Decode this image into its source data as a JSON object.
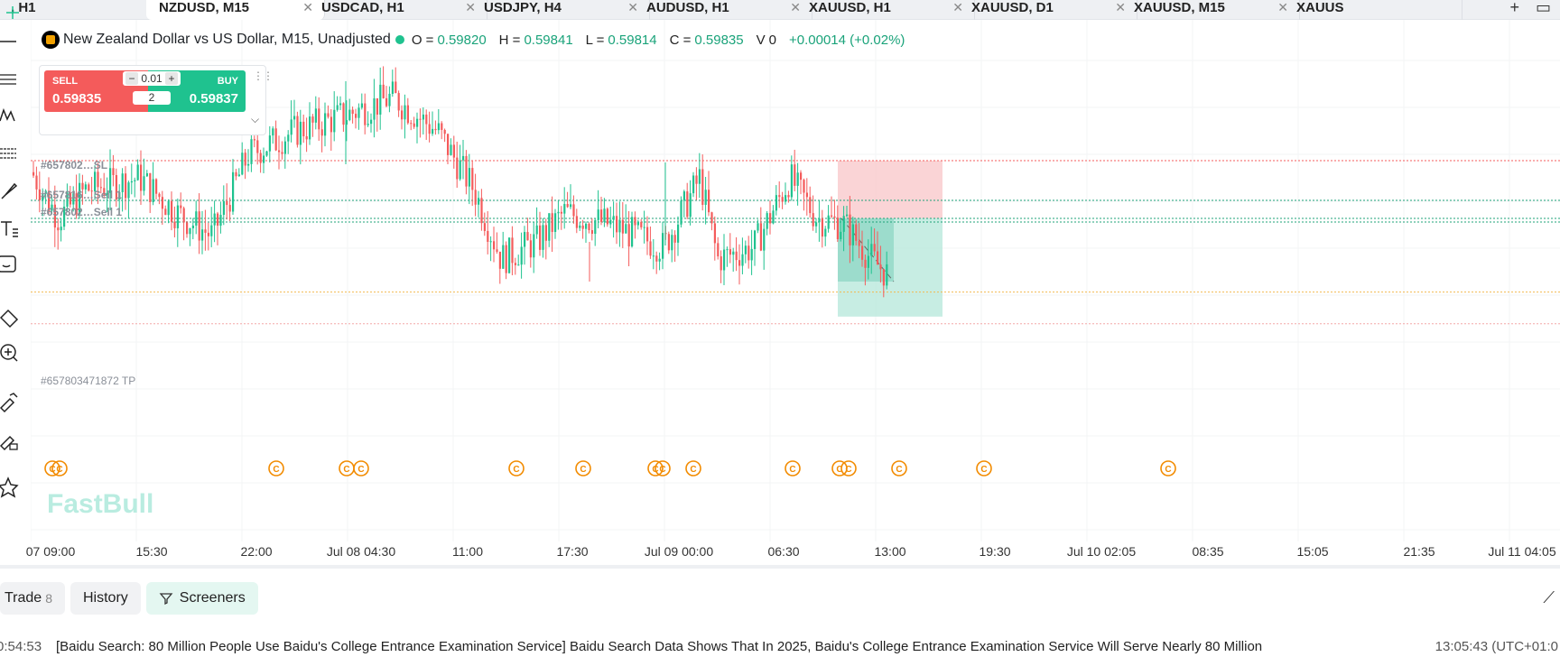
{
  "tabs": [
    {
      "label": ", H1",
      "active": false
    },
    {
      "label": "NZDUSD, M15",
      "active": true
    },
    {
      "label": "USDCAD, H1",
      "active": false
    },
    {
      "label": "USDJPY, H4",
      "active": false
    },
    {
      "label": "AUDUSD, H1",
      "active": false
    },
    {
      "label": "XAUUSD, H1",
      "active": false
    },
    {
      "label": "XAUUSD, D1",
      "active": false
    },
    {
      "label": "XAUUSD, M15",
      "active": false
    },
    {
      "label": "XAUUS",
      "active": false
    }
  ],
  "tab_close_glyph": "✕",
  "tab_actions": {
    "add": "+",
    "layout": "▭"
  },
  "tools": [
    "crosshair-icon",
    "horizontal-line-icon",
    "parallel-lines-icon",
    "wave-pattern-icon",
    "fibonacci-icon",
    "brush-icon",
    "text-icon",
    "emoji-icon",
    "ruler-icon",
    "zoom-in-icon",
    "magnet-icon",
    "lock-draw-icon",
    "star-icon"
  ],
  "legend": {
    "symbol": "New Zealand Dollar vs US Dollar, M15, Unadjusted",
    "o_label": "O =",
    "o": "0.59820",
    "h_label": "H =",
    "h": "0.59841",
    "l_label": "L =",
    "l": "0.59814",
    "c_label": "C =",
    "c": "0.59835",
    "v_label": "V",
    "v": "0",
    "change": "+0.00014 (+0.02%)"
  },
  "trade_widget": {
    "sell_label": "SELL",
    "sell_price": "0.59835",
    "buy_label": "BUY",
    "buy_price": "0.59837",
    "lot_minus": "−",
    "lot": "0.01",
    "lot_plus": "+",
    "spread": "2"
  },
  "order_labels": [
    {
      "text": "#657802…SL",
      "line": "sl"
    },
    {
      "text": "#657816…Sell 1",
      "line": "entry1"
    },
    {
      "text": "#657802…Sell 1",
      "line": "entry2"
    },
    {
      "text": "#657803471872 TP",
      "line": "tp"
    }
  ],
  "watermark": "FastBull",
  "time_axis": [
    "07 09:00",
    "15:30",
    "22:00",
    "Jul 08 04:30",
    "11:00",
    "17:30",
    "Jul 09 00:00",
    "06:30",
    "13:00",
    "19:30",
    "Jul 10 02:05",
    "08:35",
    "15:05",
    "21:35",
    "Jul 11 04:05"
  ],
  "bottom_tabs": {
    "trade": "Trade",
    "trade_count": "8",
    "history": "History",
    "screeners": "Screeners"
  },
  "news": {
    "time": "0:54:53",
    "text": "[Baidu Search: 80 Million People Use Baidu's College Entrance Examination Service] Baidu Search Data Shows That In 2025, Baidu's College Entrance Examination Service Will Serve Nearly 80 Million",
    "clock": "13:05:43 (UTC+01:0"
  },
  "colors": {
    "up": "#1fc28f",
    "down": "#f45b5b",
    "sl_line": "#f45b5b",
    "entry_line": "#1fa37a",
    "target_line": "#f2b950",
    "event_icon": "#f28b00"
  },
  "event_glyph": "C",
  "chart_data": {
    "type": "candlestick",
    "symbol": "NZDUSD",
    "timeframe": "M15",
    "candles_price_range": [
      0.596,
      0.601
    ],
    "price_levels": {
      "sl": 0.5995,
      "entry": 0.5985,
      "entry2": 0.5983,
      "current": 0.59835,
      "tp": 0.5968
    }
  }
}
